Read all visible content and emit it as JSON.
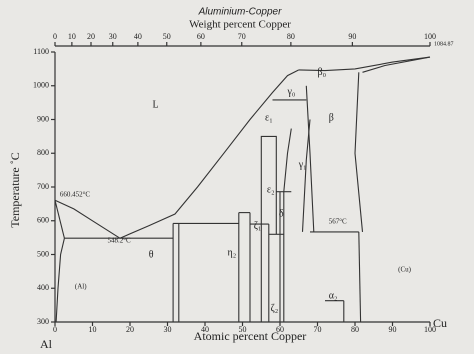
{
  "chart_data": {
    "type": "phase-diagram",
    "title": "Aluminium-Copper",
    "x2_label": "Weight percent Copper",
    "x_label": "Atomic percent Copper",
    "y_label": "Temperature ˚C",
    "left_element": "Al",
    "right_element": "Cu",
    "melting_point_right": 1084.87,
    "xlim": [
      0,
      100
    ],
    "ylim": [
      300,
      1100
    ],
    "xticks": [
      0,
      10,
      20,
      30,
      40,
      50,
      60,
      70,
      80,
      90,
      100
    ],
    "yticks": [
      300,
      400,
      500,
      600,
      700,
      800,
      900,
      1000,
      1100
    ],
    "x2ticks": [
      {
        "value": 0,
        "label": "0"
      },
      {
        "value": 4.5,
        "label": "10"
      },
      {
        "value": 9.6,
        "label": "20"
      },
      {
        "value": 15.4,
        "label": "30"
      },
      {
        "value": 22.1,
        "label": "40"
      },
      {
        "value": 29.8,
        "label": "50"
      },
      {
        "value": 38.9,
        "label": "60"
      },
      {
        "value": 49.8,
        "label": "70"
      },
      {
        "value": 62.9,
        "label": "80"
      },
      {
        "value": 79.3,
        "label": "90"
      },
      {
        "value": 100,
        "label": "100"
      }
    ],
    "lines": [
      {
        "x": [
          0,
          5,
          10,
          17.3
        ],
        "y": [
          660.45,
          635,
          600,
          548.2
        ]
      },
      {
        "x": [
          17.3,
          25,
          32,
          38,
          45,
          52,
          58,
          62,
          65
        ],
        "y": [
          548.2,
          585,
          620,
          700,
          800,
          900,
          980,
          1030,
          1047
        ]
      },
      {
        "x": [
          65,
          72,
          80,
          90,
          100
        ],
        "y": [
          1047,
          1045,
          1050,
          1070,
          1084.87
        ]
      },
      {
        "x": [
          0,
          2.5
        ],
        "y": [
          660.45,
          548.2
        ]
      },
      {
        "x": [
          2.5,
          1.5,
          0.8,
          0.3
        ],
        "y": [
          548.2,
          500,
          400,
          300
        ]
      },
      {
        "x": [
          2.5,
          31.5
        ],
        "y": [
          548.2,
          548.2
        ]
      },
      {
        "x": [
          31.5,
          31.5
        ],
        "y": [
          300,
          592
        ]
      },
      {
        "x": [
          33,
          33
        ],
        "y": [
          300,
          592
        ]
      },
      {
        "x": [
          31.5,
          49
        ],
        "y": [
          592,
          592
        ]
      },
      {
        "x": [
          49,
          49
        ],
        "y": [
          300,
          624
        ]
      },
      {
        "x": [
          52,
          52
        ],
        "y": [
          300,
          624
        ]
      },
      {
        "x": [
          49,
          52
        ],
        "y": [
          624,
          624
        ]
      },
      {
        "x": [
          55,
          55
        ],
        "y": [
          300,
          590
        ]
      },
      {
        "x": [
          57,
          57
        ],
        "y": [
          300,
          590
        ]
      },
      {
        "x": [
          52,
          57
        ],
        "y": [
          590,
          590
        ]
      },
      {
        "x": [
          55,
          55,
          59,
          59
        ],
        "y": [
          590,
          850,
          850,
          560
        ]
      },
      {
        "x": [
          57,
          61
        ],
        "y": [
          560,
          560
        ]
      },
      {
        "x": [
          60,
          60
        ],
        "y": [
          300,
          686
        ]
      },
      {
        "x": [
          61,
          61
        ],
        "y": [
          300,
          686
        ]
      },
      {
        "x": [
          59,
          63
        ],
        "y": [
          686,
          686
        ]
      },
      {
        "x": [
          61,
          62,
          63
        ],
        "y": [
          686,
          800,
          873
        ]
      },
      {
        "x": [
          66,
          67,
          68
        ],
        "y": [
          567,
          780,
          900
        ]
      },
      {
        "x": [
          58,
          67
        ],
        "y": [
          958,
          958
        ]
      },
      {
        "x": [
          67,
          68,
          69
        ],
        "y": [
          1000,
          800,
          567
        ]
      },
      {
        "x": [
          81,
          80,
          82
        ],
        "y": [
          1040,
          800,
          567
        ]
      },
      {
        "x": [
          68,
          81
        ],
        "y": [
          567,
          567
        ]
      },
      {
        "x": [
          81,
          81.5
        ],
        "y": [
          567,
          300
        ]
      },
      {
        "x": [
          77,
          77
        ],
        "y": [
          300,
          363
        ]
      },
      {
        "x": [
          72,
          77
        ],
        "y": [
          363,
          363
        ]
      },
      {
        "x": [
          82,
          88,
          100
        ],
        "y": [
          1040,
          1060,
          1084.87
        ]
      }
    ],
    "annotations": [
      {
        "text": "L",
        "x": 26,
        "y": 943
      },
      {
        "text": "660.452°C",
        "x": 1.3,
        "y": 676
      },
      {
        "text": "548.2°C",
        "x": 14,
        "y": 540
      },
      {
        "text": "567°C",
        "x": 73,
        "y": 596
      },
      {
        "text": "θ",
        "x": 25,
        "y": 498
      },
      {
        "text": "η₂",
        "x": 46,
        "y": 504
      },
      {
        "text": "ζ₂",
        "x": 57.5,
        "y": 340
      },
      {
        "text": "ζ₁",
        "x": 53,
        "y": 584
      },
      {
        "text": "ε₁",
        "x": 56,
        "y": 904
      },
      {
        "text": "ε₂",
        "x": 56.5,
        "y": 690
      },
      {
        "text": "δ",
        "x": 59.7,
        "y": 620
      },
      {
        "text": "γ₁",
        "x": 65,
        "y": 765
      },
      {
        "text": "γ₀",
        "x": 62,
        "y": 981
      },
      {
        "text": "β₀",
        "x": 70,
        "y": 1038
      },
      {
        "text": "β",
        "x": 73,
        "y": 904
      },
      {
        "text": "α₂",
        "x": 73,
        "y": 377
      },
      {
        "text": "(Al)",
        "x": 5.3,
        "y": 404
      },
      {
        "text": "(Cu)",
        "x": 91.5,
        "y": 454
      }
    ]
  }
}
